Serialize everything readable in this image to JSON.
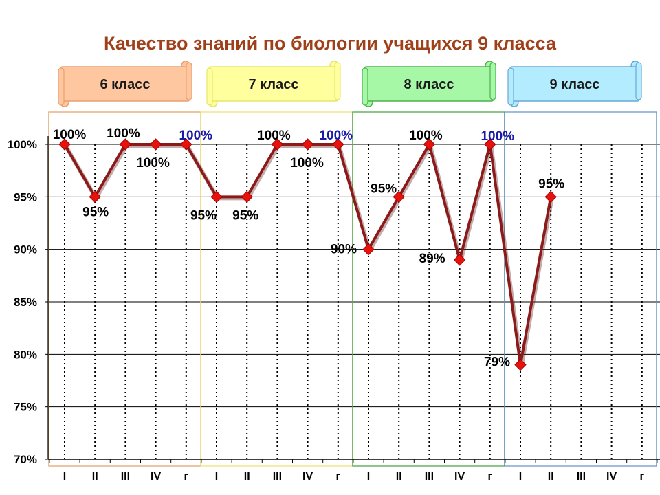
{
  "chart_data": {
    "type": "line",
    "title": "Качество знаний по биологии учащихся 9 класса",
    "categories": [
      "I",
      "II",
      "III",
      "IV",
      "г",
      "I",
      "II",
      "III",
      "IV",
      "г",
      "I",
      "II",
      "III",
      "IV",
      "г",
      "I",
      "II",
      "III",
      "IV",
      "г"
    ],
    "ylim": [
      70,
      100
    ],
    "yticks": [
      70,
      75,
      80,
      85,
      90,
      95,
      100
    ],
    "ytick_labels": [
      "70%",
      "75%",
      "80%",
      "85%",
      "90%",
      "95%",
      "100%"
    ],
    "values": [
      100,
      95,
      100,
      100,
      100,
      95,
      95,
      100,
      100,
      100,
      90,
      95,
      100,
      89,
      100,
      79,
      95,
      null,
      null,
      null
    ],
    "data_labels": [
      "100%",
      "95%",
      "100%",
      "100%",
      "100%",
      "95%",
      "95%",
      "100%",
      "100%",
      "100%",
      "90%",
      "95%",
      "100%",
      "89%",
      "100%",
      "79%",
      "95%",
      "",
      "",
      ""
    ],
    "series": [
      {
        "values": [
          100,
          95,
          100,
          100,
          100,
          95,
          95,
          100,
          100,
          100,
          90,
          95,
          100,
          89,
          100,
          79,
          95,
          null,
          null,
          null
        ]
      }
    ],
    "grid": true,
    "groups": [
      {
        "label": "6 класс",
        "fill": "#ffc7a0",
        "edge": "#e8a070",
        "frame": "#e0a060"
      },
      {
        "label": "7 класс",
        "fill": "#ffff9e",
        "edge": "#e6e66c",
        "frame": "#f0e070"
      },
      {
        "label": "8 класс",
        "fill": "#a6f7a6",
        "edge": "#4fb04f",
        "frame": "#40a040"
      },
      {
        "label": "9 класс",
        "fill": "#b3ecff",
        "edge": "#6aa8d6",
        "frame": "#6090c8"
      }
    ],
    "colors": {
      "line": "#8b1a1a",
      "marker": "#e8120c",
      "title": "#a0401a",
      "label_default": "#000000",
      "label_year_end": "#1a1aa8"
    }
  }
}
